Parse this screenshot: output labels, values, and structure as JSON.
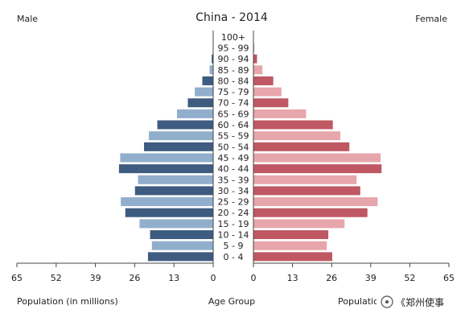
{
  "chart_data": {
    "type": "bar",
    "title": "China - 2014",
    "left_header": "Male",
    "right_header": "Female",
    "left_xlabel": "Population (in millions)",
    "center_xlabel": "Age Group",
    "right_xlabel": "Population (in millions)",
    "xlim": [
      0,
      65
    ],
    "x_ticks": [
      "65",
      "52",
      "39",
      "26",
      "13",
      "0"
    ],
    "x_ticks_right": [
      "0",
      "13",
      "26",
      "39",
      "52",
      "65"
    ],
    "categories": [
      "100+",
      "95 - 99",
      "90 - 94",
      "85 - 89",
      "80 - 84",
      "75 - 79",
      "70 - 74",
      "65 - 69",
      "60 - 64",
      "55 - 59",
      "50 - 54",
      "45 - 49",
      "40 - 44",
      "35 - 39",
      "30 - 34",
      "25 - 29",
      "20 - 24",
      "15 - 19",
      "10 - 14",
      "5 - 9",
      "0 - 4"
    ],
    "series": [
      {
        "name": "Male",
        "color_dark": "#3e5b80",
        "color_light": "#92aecd",
        "values": [
          0.01,
          0.1,
          0.5,
          1.2,
          3.6,
          6.1,
          8.4,
          12.0,
          18.5,
          21.3,
          22.9,
          30.8,
          31.2,
          24.9,
          25.9,
          30.6,
          29.1,
          24.4,
          20.9,
          20.3,
          21.6
        ]
      },
      {
        "name": "Female",
        "color_dark": "#bf5863",
        "color_light": "#e6a6ab",
        "values": [
          0.04,
          0.3,
          1.2,
          3.0,
          6.6,
          9.3,
          11.6,
          17.5,
          26.4,
          28.9,
          31.9,
          42.3,
          42.6,
          34.3,
          35.5,
          41.3,
          37.9,
          30.3,
          24.9,
          24.4,
          26.2
        ]
      }
    ],
    "grid": false,
    "legend": "none"
  },
  "watermark": "《郑州使事"
}
